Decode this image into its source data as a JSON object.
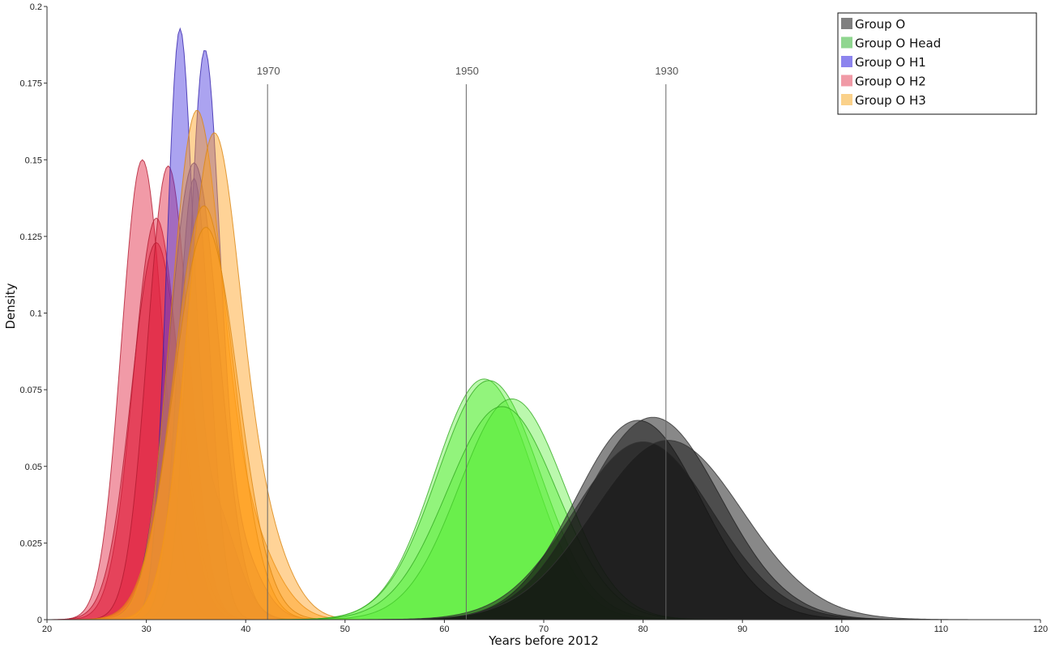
{
  "chart_data": {
    "type": "area",
    "xlabel": "Years before 2012",
    "ylabel": "Density",
    "xlim": [
      20,
      120
    ],
    "ylim": [
      0,
      0.2
    ],
    "x_ticks": [
      20,
      30,
      40,
      50,
      60,
      70,
      80,
      90,
      100,
      110,
      120
    ],
    "y_ticks": [
      0,
      0.025,
      0.05,
      0.075,
      0.1,
      0.125,
      0.15,
      0.175,
      0.2
    ],
    "y_tick_labels": [
      "0",
      "0.025",
      "0.05",
      "0.075",
      "0.1",
      "0.125",
      "0.15",
      "0.175",
      "0.2"
    ],
    "grid": false,
    "legend_position": "top-right",
    "legend": [
      {
        "label": "Group O",
        "color": "#7f7f7f"
      },
      {
        "label": "Group O Head",
        "color": "#8fd68f"
      },
      {
        "label": "Group O H1",
        "color": "#8c84ee"
      },
      {
        "label": "Group O H2",
        "color": "#f09aa6"
      },
      {
        "label": "Group O H3",
        "color": "#fad18a"
      }
    ],
    "reference_lines": [
      {
        "label": "1970",
        "x": 42.2
      },
      {
        "label": "1950",
        "x": 62.2
      },
      {
        "label": "1930",
        "x": 82.3
      }
    ],
    "series": [
      {
        "group": "Group O H2",
        "color": "#e11e3c",
        "stroke": "#b01a30",
        "opacity": 0.45,
        "components": [
          {
            "mu": 29.6,
            "sd": 2.1,
            "peak": 0.15
          }
        ]
      },
      {
        "group": "Group O H2",
        "color": "#e11e3c",
        "stroke": "#b01a30",
        "opacity": 0.45,
        "components": [
          {
            "mu": 31.0,
            "sd": 2.3,
            "peak": 0.131
          }
        ]
      },
      {
        "group": "Group O H2",
        "color": "#e11e3c",
        "stroke": "#b01a30",
        "opacity": 0.45,
        "components": [
          {
            "mu": 31.0,
            "sd": 2.5,
            "peak": 0.123
          }
        ]
      },
      {
        "group": "Group O H2",
        "color": "#e11e3c",
        "stroke": "#b01a30",
        "opacity": 0.45,
        "components": [
          {
            "mu": 32.2,
            "sd": 2.1,
            "peak": 0.148
          }
        ]
      },
      {
        "group": "Group O H1",
        "color": "#4433dd",
        "stroke": "#3322aa",
        "opacity": 0.45,
        "components": [
          {
            "mu": 33.3,
            "sd": 1.3,
            "peak": 0.175
          },
          {
            "mu": 36.4,
            "sd": 2.4,
            "peak": 0.04
          }
        ]
      },
      {
        "group": "Group O H1",
        "color": "#4433dd",
        "stroke": "#3322aa",
        "opacity": 0.45,
        "components": [
          {
            "mu": 35.8,
            "sd": 1.5,
            "peak": 0.166
          },
          {
            "mu": 38.2,
            "sd": 2.6,
            "peak": 0.03
          }
        ]
      },
      {
        "group": "Group O H1",
        "color": "#4433dd",
        "stroke": "#3322aa",
        "opacity": 0.45,
        "components": [
          {
            "mu": 34.8,
            "sd": 1.6,
            "peak": 0.144
          }
        ]
      },
      {
        "group": "Group O H1",
        "color": "#4433dd",
        "stroke": "#3322aa",
        "opacity": 0.45,
        "components": [
          {
            "mu": 34.8,
            "sd": 2.5,
            "peak": 0.149
          }
        ]
      },
      {
        "group": "Group O H3",
        "color": "#ff9e18",
        "stroke": "#d98410",
        "opacity": 0.45,
        "components": [
          {
            "mu": 34.9,
            "sd": 2.5,
            "peak": 0.155
          },
          {
            "mu": 39.5,
            "sd": 3.2,
            "peak": 0.03
          }
        ]
      },
      {
        "group": "Group O H3",
        "color": "#ff9e18",
        "stroke": "#d98410",
        "opacity": 0.45,
        "components": [
          {
            "mu": 36.6,
            "sd": 2.6,
            "peak": 0.148
          },
          {
            "mu": 41.0,
            "sd": 3.0,
            "peak": 0.03
          }
        ]
      },
      {
        "group": "Group O H3",
        "color": "#ff9e18",
        "stroke": "#d98410",
        "opacity": 0.45,
        "components": [
          {
            "mu": 35.8,
            "sd": 3.0,
            "peak": 0.135
          }
        ]
      },
      {
        "group": "Group O H3",
        "color": "#ff9e18",
        "stroke": "#d98410",
        "opacity": 0.45,
        "components": [
          {
            "mu": 36.0,
            "sd": 3.2,
            "peak": 0.128
          }
        ]
      },
      {
        "group": "Group O Head",
        "color": "#55ee33",
        "stroke": "#33aa22",
        "opacity": 0.4,
        "components": [
          {
            "mu": 64.0,
            "sd": 5.0,
            "peak": 0.0785
          }
        ]
      },
      {
        "group": "Group O Head",
        "color": "#55ee33",
        "stroke": "#33aa22",
        "opacity": 0.4,
        "components": [
          {
            "mu": 64.5,
            "sd": 5.2,
            "peak": 0.078
          }
        ]
      },
      {
        "group": "Group O Head",
        "color": "#55ee33",
        "stroke": "#33aa22",
        "opacity": 0.4,
        "components": [
          {
            "mu": 66.8,
            "sd": 5.3,
            "peak": 0.072
          }
        ]
      },
      {
        "group": "Group O Head",
        "color": "#55ee33",
        "stroke": "#33aa22",
        "opacity": 0.4,
        "components": [
          {
            "mu": 65.8,
            "sd": 5.5,
            "peak": 0.0695
          }
        ]
      },
      {
        "group": "Group O",
        "color": "#111111",
        "stroke": "#333333",
        "opacity": 0.5,
        "components": [
          {
            "mu": 79.5,
            "sd": 6.3,
            "peak": 0.065
          }
        ]
      },
      {
        "group": "Group O",
        "color": "#111111",
        "stroke": "#333333",
        "opacity": 0.5,
        "components": [
          {
            "mu": 81.0,
            "sd": 6.8,
            "peak": 0.066
          }
        ]
      },
      {
        "group": "Group O",
        "color": "#111111",
        "stroke": "#333333",
        "opacity": 0.5,
        "components": [
          {
            "mu": 80.0,
            "sd": 7.0,
            "peak": 0.058
          }
        ]
      },
      {
        "group": "Group O",
        "color": "#111111",
        "stroke": "#333333",
        "opacity": 0.5,
        "components": [
          {
            "mu": 82.5,
            "sd": 7.5,
            "peak": 0.0585
          }
        ]
      }
    ]
  }
}
